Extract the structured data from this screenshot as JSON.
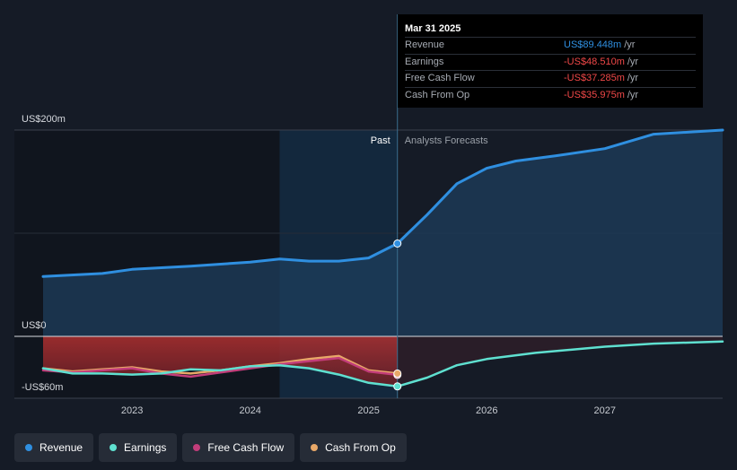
{
  "tooltip": {
    "date": "Mar 31 2025",
    "rows": [
      {
        "label": "Revenue",
        "value": "US$89.448m",
        "unit": "/yr",
        "color": "#2f8fe0"
      },
      {
        "label": "Earnings",
        "value": "-US$48.510m",
        "unit": "/yr",
        "color": "#f04848"
      },
      {
        "label": "Free Cash Flow",
        "value": "-US$37.285m",
        "unit": "/yr",
        "color": "#f04848"
      },
      {
        "label": "Cash From Op",
        "value": "-US$35.975m",
        "unit": "/yr",
        "color": "#f04848"
      }
    ]
  },
  "regions": {
    "past": "Past",
    "forecast": "Analysts Forecasts"
  },
  "legend": [
    {
      "label": "Revenue",
      "color": "#2f8fe0"
    },
    {
      "label": "Earnings",
      "color": "#5fe0d0"
    },
    {
      "label": "Free Cash Flow",
      "color": "#c23d7a"
    },
    {
      "label": "Cash From Op",
      "color": "#e8a868"
    }
  ],
  "chart_data": {
    "type": "line",
    "y_unit": "US$m",
    "ylim": [
      -60,
      200
    ],
    "y_tick_labels": [
      {
        "value": 200,
        "label": "US$200m"
      },
      {
        "value": 0,
        "label": "US$0"
      },
      {
        "value": -60,
        "label": "-US$60m"
      }
    ],
    "x_ticks": [
      "2023",
      "2024",
      "2025",
      "2026",
      "2027"
    ],
    "x_range": [
      "2022-04-01",
      "2027-12-31"
    ],
    "past_forecast_divider": "2025-03-31",
    "highlight_band": [
      "2024-04-01",
      "2025-03-31"
    ],
    "series": [
      {
        "name": "Revenue",
        "color": "#2f8fe0",
        "points": [
          [
            "2022-04-01",
            58
          ],
          [
            "2022-10-01",
            61
          ],
          [
            "2023-01-01",
            65
          ],
          [
            "2023-07-01",
            68
          ],
          [
            "2024-01-01",
            72
          ],
          [
            "2024-04-01",
            75
          ],
          [
            "2024-07-01",
            73
          ],
          [
            "2024-10-01",
            73
          ],
          [
            "2025-01-01",
            76
          ],
          [
            "2025-03-31",
            90
          ],
          [
            "2025-07-01",
            118
          ],
          [
            "2025-10-01",
            148
          ],
          [
            "2026-01-01",
            163
          ],
          [
            "2026-04-01",
            170
          ],
          [
            "2026-08-01",
            175
          ],
          [
            "2027-01-01",
            182
          ],
          [
            "2027-06-01",
            196
          ],
          [
            "2027-12-31",
            200
          ]
        ]
      },
      {
        "name": "Earnings",
        "color": "#5fe0d0",
        "points": [
          [
            "2022-04-01",
            -31
          ],
          [
            "2022-07-01",
            -36
          ],
          [
            "2022-10-01",
            -36
          ],
          [
            "2023-01-01",
            -37
          ],
          [
            "2023-04-01",
            -36
          ],
          [
            "2023-07-01",
            -32
          ],
          [
            "2023-10-01",
            -33
          ],
          [
            "2024-01-01",
            -29
          ],
          [
            "2024-04-01",
            -28
          ],
          [
            "2024-07-01",
            -31
          ],
          [
            "2024-10-01",
            -37
          ],
          [
            "2025-01-01",
            -45
          ],
          [
            "2025-03-31",
            -48.5
          ],
          [
            "2025-07-01",
            -40
          ],
          [
            "2025-10-01",
            -28
          ],
          [
            "2026-01-01",
            -22
          ],
          [
            "2026-06-01",
            -16
          ],
          [
            "2027-01-01",
            -10
          ],
          [
            "2027-06-01",
            -7
          ],
          [
            "2027-12-31",
            -5
          ]
        ]
      },
      {
        "name": "Free Cash Flow",
        "color": "#c23d7a",
        "points": [
          [
            "2022-04-01",
            -33
          ],
          [
            "2022-07-01",
            -35
          ],
          [
            "2022-10-01",
            -33
          ],
          [
            "2023-01-01",
            -31
          ],
          [
            "2023-04-01",
            -36
          ],
          [
            "2023-07-01",
            -39
          ],
          [
            "2023-10-01",
            -35
          ],
          [
            "2024-01-01",
            -31
          ],
          [
            "2024-04-01",
            -27
          ],
          [
            "2024-07-01",
            -24
          ],
          [
            "2024-10-01",
            -21
          ],
          [
            "2025-01-01",
            -34
          ],
          [
            "2025-03-31",
            -37.3
          ]
        ]
      },
      {
        "name": "Cash From Op",
        "color": "#e8a868",
        "points": [
          [
            "2022-04-01",
            -31
          ],
          [
            "2022-07-01",
            -34
          ],
          [
            "2022-10-01",
            -32
          ],
          [
            "2023-01-01",
            -30
          ],
          [
            "2023-04-01",
            -34
          ],
          [
            "2023-07-01",
            -36
          ],
          [
            "2023-10-01",
            -33
          ],
          [
            "2024-01-01",
            -29
          ],
          [
            "2024-04-01",
            -26
          ],
          [
            "2024-07-01",
            -22
          ],
          [
            "2024-10-01",
            -19
          ],
          [
            "2025-01-01",
            -33
          ],
          [
            "2025-03-31",
            -36
          ]
        ]
      }
    ]
  }
}
